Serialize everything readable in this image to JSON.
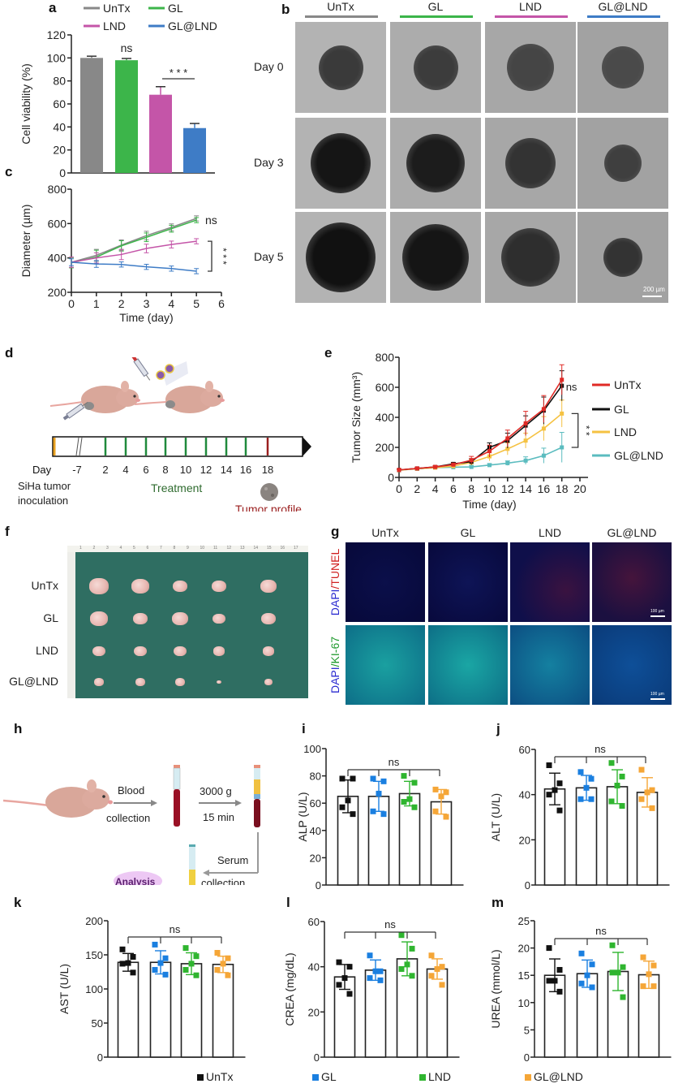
{
  "panel_labels": {
    "a": "a",
    "b": "b",
    "c": "c",
    "d": "d",
    "e": "e",
    "f": "f",
    "g": "g",
    "h": "h",
    "i": "i",
    "j": "j",
    "k": "k",
    "l": "l",
    "m": "m"
  },
  "colors": {
    "untx": "#888888",
    "gl": "#3cb54a",
    "lnd": "#c455a8",
    "gl_lnd": "#3e7cc6",
    "e_untx": "#e02a26",
    "e_gl": "#111111",
    "e_lnd": "#f5c242",
    "e_gl_lnd": "#5bbcbf",
    "dot_untx": "#111111",
    "dot_gl": "#1a7fe0",
    "dot_lnd": "#2fb52f",
    "dot_gl_lnd": "#f5a637"
  },
  "chart_data": [
    {
      "id": "a",
      "type": "bar",
      "title": "",
      "categories": [
        "UnTx",
        "GL",
        "LND",
        "GL@LND"
      ],
      "values": [
        100,
        98,
        68,
        39
      ],
      "errors": [
        1.5,
        1.5,
        7,
        4
      ],
      "ylabel": "Cell viability (%)",
      "xlabel": "",
      "ylim": [
        0,
        120
      ],
      "yticks": [
        0,
        20,
        40,
        60,
        80,
        100,
        120
      ],
      "legend": [
        "UnTx",
        "GL",
        "LND",
        "GL@LND"
      ],
      "legend_position": "top",
      "annotations": [
        "ns",
        "* * *"
      ]
    },
    {
      "id": "c",
      "type": "line",
      "x": [
        0,
        1,
        2,
        3,
        4,
        5
      ],
      "series": [
        {
          "name": "UnTx",
          "values": [
            375,
            415,
            475,
            530,
            578,
            630
          ],
          "errors": [
            30,
            35,
            30,
            25,
            20,
            15
          ]
        },
        {
          "name": "GL",
          "values": [
            372,
            405,
            470,
            520,
            570,
            620
          ],
          "errors": [
            30,
            40,
            30,
            25,
            20,
            15
          ]
        },
        {
          "name": "LND",
          "values": [
            375,
            400,
            420,
            455,
            478,
            497
          ],
          "errors": [
            30,
            30,
            30,
            25,
            20,
            15
          ]
        },
        {
          "name": "GL@LND",
          "values": [
            375,
            365,
            362,
            348,
            338,
            323
          ],
          "errors": [
            20,
            20,
            15,
            15,
            15,
            15
          ]
        }
      ],
      "xlabel": "Time (day)",
      "ylabel": "Diameter (µm)",
      "xlim": [
        0,
        6
      ],
      "ylim": [
        200,
        800
      ],
      "xticks": [
        0,
        1,
        2,
        3,
        4,
        5,
        6
      ],
      "yticks": [
        200,
        400,
        600,
        800
      ],
      "annotations": [
        "ns",
        "* * *"
      ]
    },
    {
      "id": "e",
      "type": "line",
      "x": [
        0,
        2,
        4,
        6,
        8,
        10,
        12,
        14,
        16,
        18
      ],
      "series": [
        {
          "name": "UnTx",
          "values": [
            50,
            60,
            70,
            85,
            115,
            175,
            260,
            360,
            455,
            650
          ],
          "errors": [
            5,
            5,
            8,
            10,
            25,
            40,
            55,
            80,
            90,
            100
          ]
        },
        {
          "name": "GL",
          "values": [
            50,
            60,
            70,
            90,
            105,
            200,
            245,
            345,
            445,
            610
          ],
          "errors": [
            5,
            5,
            8,
            10,
            20,
            30,
            50,
            65,
            90,
            100
          ]
        },
        {
          "name": "LND",
          "values": [
            48,
            58,
            65,
            75,
            100,
            140,
            190,
            245,
            325,
            425
          ],
          "errors": [
            5,
            5,
            8,
            10,
            20,
            30,
            40,
            50,
            80,
            90
          ]
        },
        {
          "name": "GL@LND",
          "values": [
            48,
            58,
            65,
            68,
            70,
            82,
            95,
            112,
            145,
            200
          ],
          "errors": [
            5,
            5,
            5,
            5,
            10,
            10,
            15,
            25,
            50,
            100
          ]
        }
      ],
      "xlabel": "Time (day)",
      "ylabel": "Tumor Size (mm³)",
      "xlim": [
        0,
        20
      ],
      "ylim": [
        0,
        800
      ],
      "xticks": [
        0,
        2,
        4,
        6,
        8,
        10,
        12,
        14,
        16,
        18,
        20
      ],
      "yticks": [
        0,
        200,
        400,
        600,
        800
      ],
      "legend": [
        "UnTx",
        "GL",
        "LND",
        "GL@LND"
      ],
      "legend_position": "right",
      "annotations": [
        "ns",
        "* *"
      ]
    },
    {
      "id": "i",
      "type": "bar",
      "ylabel": "ALP (U/L)",
      "ylim": [
        0,
        100
      ],
      "yticks": [
        0,
        20,
        40,
        60,
        80,
        100
      ],
      "categories": [
        "UnTx",
        "GL",
        "LND",
        "GL@LND"
      ],
      "values": [
        65,
        65,
        67,
        61
      ],
      "errors": [
        12,
        11,
        9,
        9
      ],
      "points": [
        [
          78,
          78,
          62,
          57,
          52
        ],
        [
          78,
          76,
          67,
          54,
          52
        ],
        [
          80,
          75,
          63,
          61,
          57
        ],
        [
          70,
          68,
          65,
          54,
          50
        ]
      ],
      "annotations": [
        "ns"
      ]
    },
    {
      "id": "j",
      "type": "bar",
      "ylabel": "ALT (U/L)",
      "ylim": [
        0,
        60
      ],
      "yticks": [
        0,
        20,
        40,
        60
      ],
      "categories": [
        "UnTx",
        "GL",
        "LND",
        "GL@LND"
      ],
      "values": [
        42.5,
        43,
        43.5,
        41
      ],
      "errors": [
        7,
        5.5,
        7.5,
        6.5
      ],
      "points": [
        [
          53,
          45,
          42,
          40,
          33
        ],
        [
          50,
          47,
          43,
          38,
          38
        ],
        [
          54,
          48,
          44,
          37,
          35
        ],
        [
          51,
          42,
          41,
          38,
          34
        ]
      ],
      "annotations": [
        "ns"
      ]
    },
    {
      "id": "k",
      "type": "bar",
      "ylabel": "AST (U/L)",
      "ylim": [
        0,
        200
      ],
      "yticks": [
        0,
        50,
        100,
        150,
        200
      ],
      "categories": [
        "UnTx",
        "GL",
        "LND",
        "GL@LND"
      ],
      "values": [
        139,
        139,
        137,
        136
      ],
      "errors": [
        13,
        17,
        16,
        12
      ],
      "points": [
        [
          158,
          147,
          138,
          137,
          124
        ],
        [
          165,
          145,
          138,
          128,
          121
        ],
        [
          160,
          148,
          137,
          128,
          120
        ],
        [
          153,
          145,
          137,
          128,
          120
        ]
      ],
      "annotations": [
        "ns"
      ]
    },
    {
      "id": "l",
      "type": "bar",
      "ylabel": "CREA (mg/dL)",
      "ylim": [
        0,
        60
      ],
      "yticks": [
        0,
        20,
        40,
        60
      ],
      "categories": [
        "UnTx",
        "GL",
        "LND",
        "GL@LND"
      ],
      "values": [
        35.5,
        38.5,
        43.5,
        39
      ],
      "errors": [
        5.5,
        4.5,
        7.5,
        4.5
      ],
      "points": [
        [
          42,
          40,
          35,
          32,
          28
        ],
        [
          45,
          38,
          38,
          35,
          34
        ],
        [
          54,
          48,
          41,
          39,
          36
        ],
        [
          45,
          40,
          39,
          36,
          32
        ]
      ],
      "annotations": [
        "ns"
      ]
    },
    {
      "id": "m",
      "type": "bar",
      "ylabel": "UREA (mmol/L)",
      "ylim": [
        0,
        25
      ],
      "yticks": [
        0,
        5,
        10,
        15,
        20,
        25
      ],
      "categories": [
        "UnTx",
        "GL",
        "LND",
        "GL@LND"
      ],
      "values": [
        15,
        15.3,
        15.7,
        15.1
      ],
      "errors": [
        3,
        2.5,
        3.5,
        2.5
      ],
      "points": [
        [
          20,
          16,
          14,
          14,
          12
        ],
        [
          19,
          17,
          15,
          13.5,
          12.8
        ],
        [
          20.5,
          16.5,
          15.5,
          15.5,
          11
        ],
        [
          18.3,
          16.8,
          15.2,
          13,
          13
        ]
      ],
      "annotations": [
        "ns"
      ]
    }
  ],
  "legend_a": {
    "untx": "UnTx",
    "gl": "GL",
    "lnd": "LND",
    "gl_lnd": "GL@LND"
  },
  "panel_b": {
    "columns": [
      "UnTx",
      "GL",
      "LND",
      "GL@LND"
    ],
    "rows": [
      "Day 0",
      "Day 3",
      "Day 5"
    ],
    "scale_bar": "200 µm"
  },
  "panel_d": {
    "day_label": "Day",
    "days": [
      "-7",
      "2",
      "4",
      "6",
      "8",
      "10",
      "12",
      "14",
      "16",
      "18"
    ],
    "inoculation": [
      "SiHa tumor",
      "inoculation"
    ],
    "treatment": "Treatment",
    "tumor_profile": "Tumor profile"
  },
  "panel_f": {
    "rows": [
      "UnTx",
      "GL",
      "LND",
      "GL@LND"
    ],
    "ruler": [
      "1",
      "2",
      "3",
      "4",
      "5",
      "6",
      "7",
      "8",
      "9",
      "10",
      "11",
      "12",
      "13",
      "14",
      "15",
      "16",
      "17"
    ]
  },
  "panel_g": {
    "columns": [
      "UnTx",
      "GL",
      "LND",
      "GL@LND"
    ],
    "row1": {
      "a": "DAPI",
      "sep": "/",
      "b": "TUNEL"
    },
    "row2": {
      "a": "DAPI",
      "sep": "/",
      "b": "KI-67"
    },
    "scale_bar": "100 µm"
  },
  "panel_h": {
    "blood": "Blood",
    "blood2": "collection",
    "spin": "3000 g",
    "spin2": "15 min",
    "serum": "Serum",
    "serum2": "collection",
    "analysis": "Analysis"
  },
  "bottom_legend": {
    "untx": "UnTx",
    "gl": "GL",
    "lnd": "LND",
    "gl_lnd": "GL@LND"
  }
}
